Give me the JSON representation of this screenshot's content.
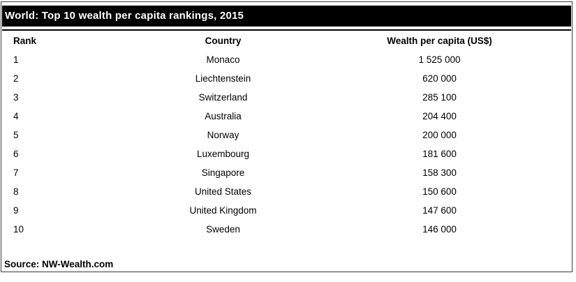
{
  "header": {
    "title": "World: Top 10 wealth per capita rankings, 2015"
  },
  "table": {
    "columns": [
      "Rank",
      "Country",
      "Wealth per capita (US$)"
    ],
    "rows": [
      {
        "rank": "1",
        "country": "Monaco",
        "wealth": "1 525 000"
      },
      {
        "rank": "2",
        "country": "Liechtenstein",
        "wealth": "620 000"
      },
      {
        "rank": "3",
        "country": "Switzerland",
        "wealth": "285 100"
      },
      {
        "rank": "4",
        "country": "Australia",
        "wealth": "204 400"
      },
      {
        "rank": "5",
        "country": "Norway",
        "wealth": "200 000"
      },
      {
        "rank": "6",
        "country": "Luxembourg",
        "wealth": "181 600"
      },
      {
        "rank": "7",
        "country": "Singapore",
        "wealth": "158 300"
      },
      {
        "rank": "8",
        "country": "United States",
        "wealth": "150 600"
      },
      {
        "rank": "9",
        "country": "United Kingdom",
        "wealth": "147 600"
      },
      {
        "rank": "10",
        "country": "Sweden",
        "wealth": "146 000"
      }
    ]
  },
  "footer": {
    "source": "Source: NW-Wealth.com"
  },
  "colors": {
    "title_bar_bg": "#000000",
    "title_text": "#ffffff",
    "body_text": "#000000",
    "frame_border": "#3c3c3c"
  },
  "chart_data": {
    "type": "table",
    "title": "World: Top 10 wealth per capita rankings, 2015",
    "columns": [
      "Rank",
      "Country",
      "Wealth per capita (US$)"
    ],
    "rows": [
      [
        1,
        "Monaco",
        1525000
      ],
      [
        2,
        "Liechtenstein",
        620000
      ],
      [
        3,
        "Switzerland",
        285100
      ],
      [
        4,
        "Australia",
        204400
      ],
      [
        5,
        "Norway",
        200000
      ],
      [
        6,
        "Luxembourg",
        181600
      ],
      [
        7,
        "Singapore",
        158300
      ],
      [
        8,
        "United States",
        150600
      ],
      [
        9,
        "United Kingdom",
        147600
      ],
      [
        10,
        "Sweden",
        146000
      ]
    ],
    "source": "Source: NW-Wealth.com"
  }
}
